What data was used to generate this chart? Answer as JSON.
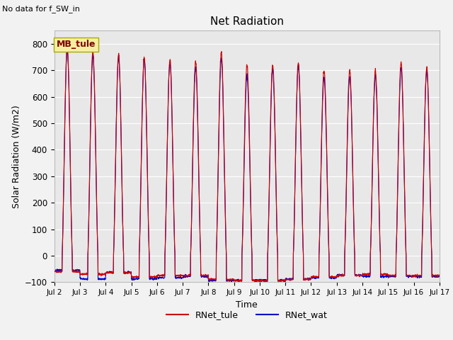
{
  "title": "Net Radiation",
  "subtitle": "No data for f_SW_in",
  "ylabel": "Solar Radiation (W/m2)",
  "xlabel": "Time",
  "ylim": [
    -100,
    850
  ],
  "yticks": [
    -100,
    0,
    100,
    200,
    300,
    400,
    500,
    600,
    700,
    800
  ],
  "xtick_labels": [
    "Jul 2",
    "Jul 3",
    "Jul 4",
    "Jul 5",
    "Jul 6",
    "Jul 7",
    "Jul 8",
    "Jul 9",
    "Jul 10",
    "Jul 11",
    "Jul 12",
    "Jul 13",
    "Jul 14",
    "Jul 15",
    "Jul 16",
    "Jul 17"
  ],
  "color_tule": "#cc0000",
  "color_wat": "#0000cc",
  "legend_label_tule": "RNet_tule",
  "legend_label_wat": "RNet_wat",
  "inset_label": "MB_tule",
  "background_color": "#e8e8e8",
  "grid_color": "#ffffff",
  "fig_bg": "#f2f2f2",
  "n_days": 15,
  "peak_tule": [
    790,
    770,
    760,
    750,
    740,
    735,
    770,
    720,
    720,
    730,
    700,
    700,
    700,
    730,
    710
  ],
  "peak_wat": [
    775,
    755,
    748,
    742,
    728,
    708,
    742,
    678,
    702,
    712,
    672,
    678,
    678,
    708,
    698
  ],
  "trough_tule": [
    -60,
    -70,
    -65,
    -80,
    -75,
    -75,
    -90,
    -95,
    -95,
    -90,
    -80,
    -75,
    -70,
    -75,
    -75
  ],
  "trough_wat": [
    -55,
    -88,
    -63,
    -88,
    -83,
    -78,
    -93,
    -93,
    -93,
    -88,
    -83,
    -73,
    -78,
    -78,
    -78
  ]
}
